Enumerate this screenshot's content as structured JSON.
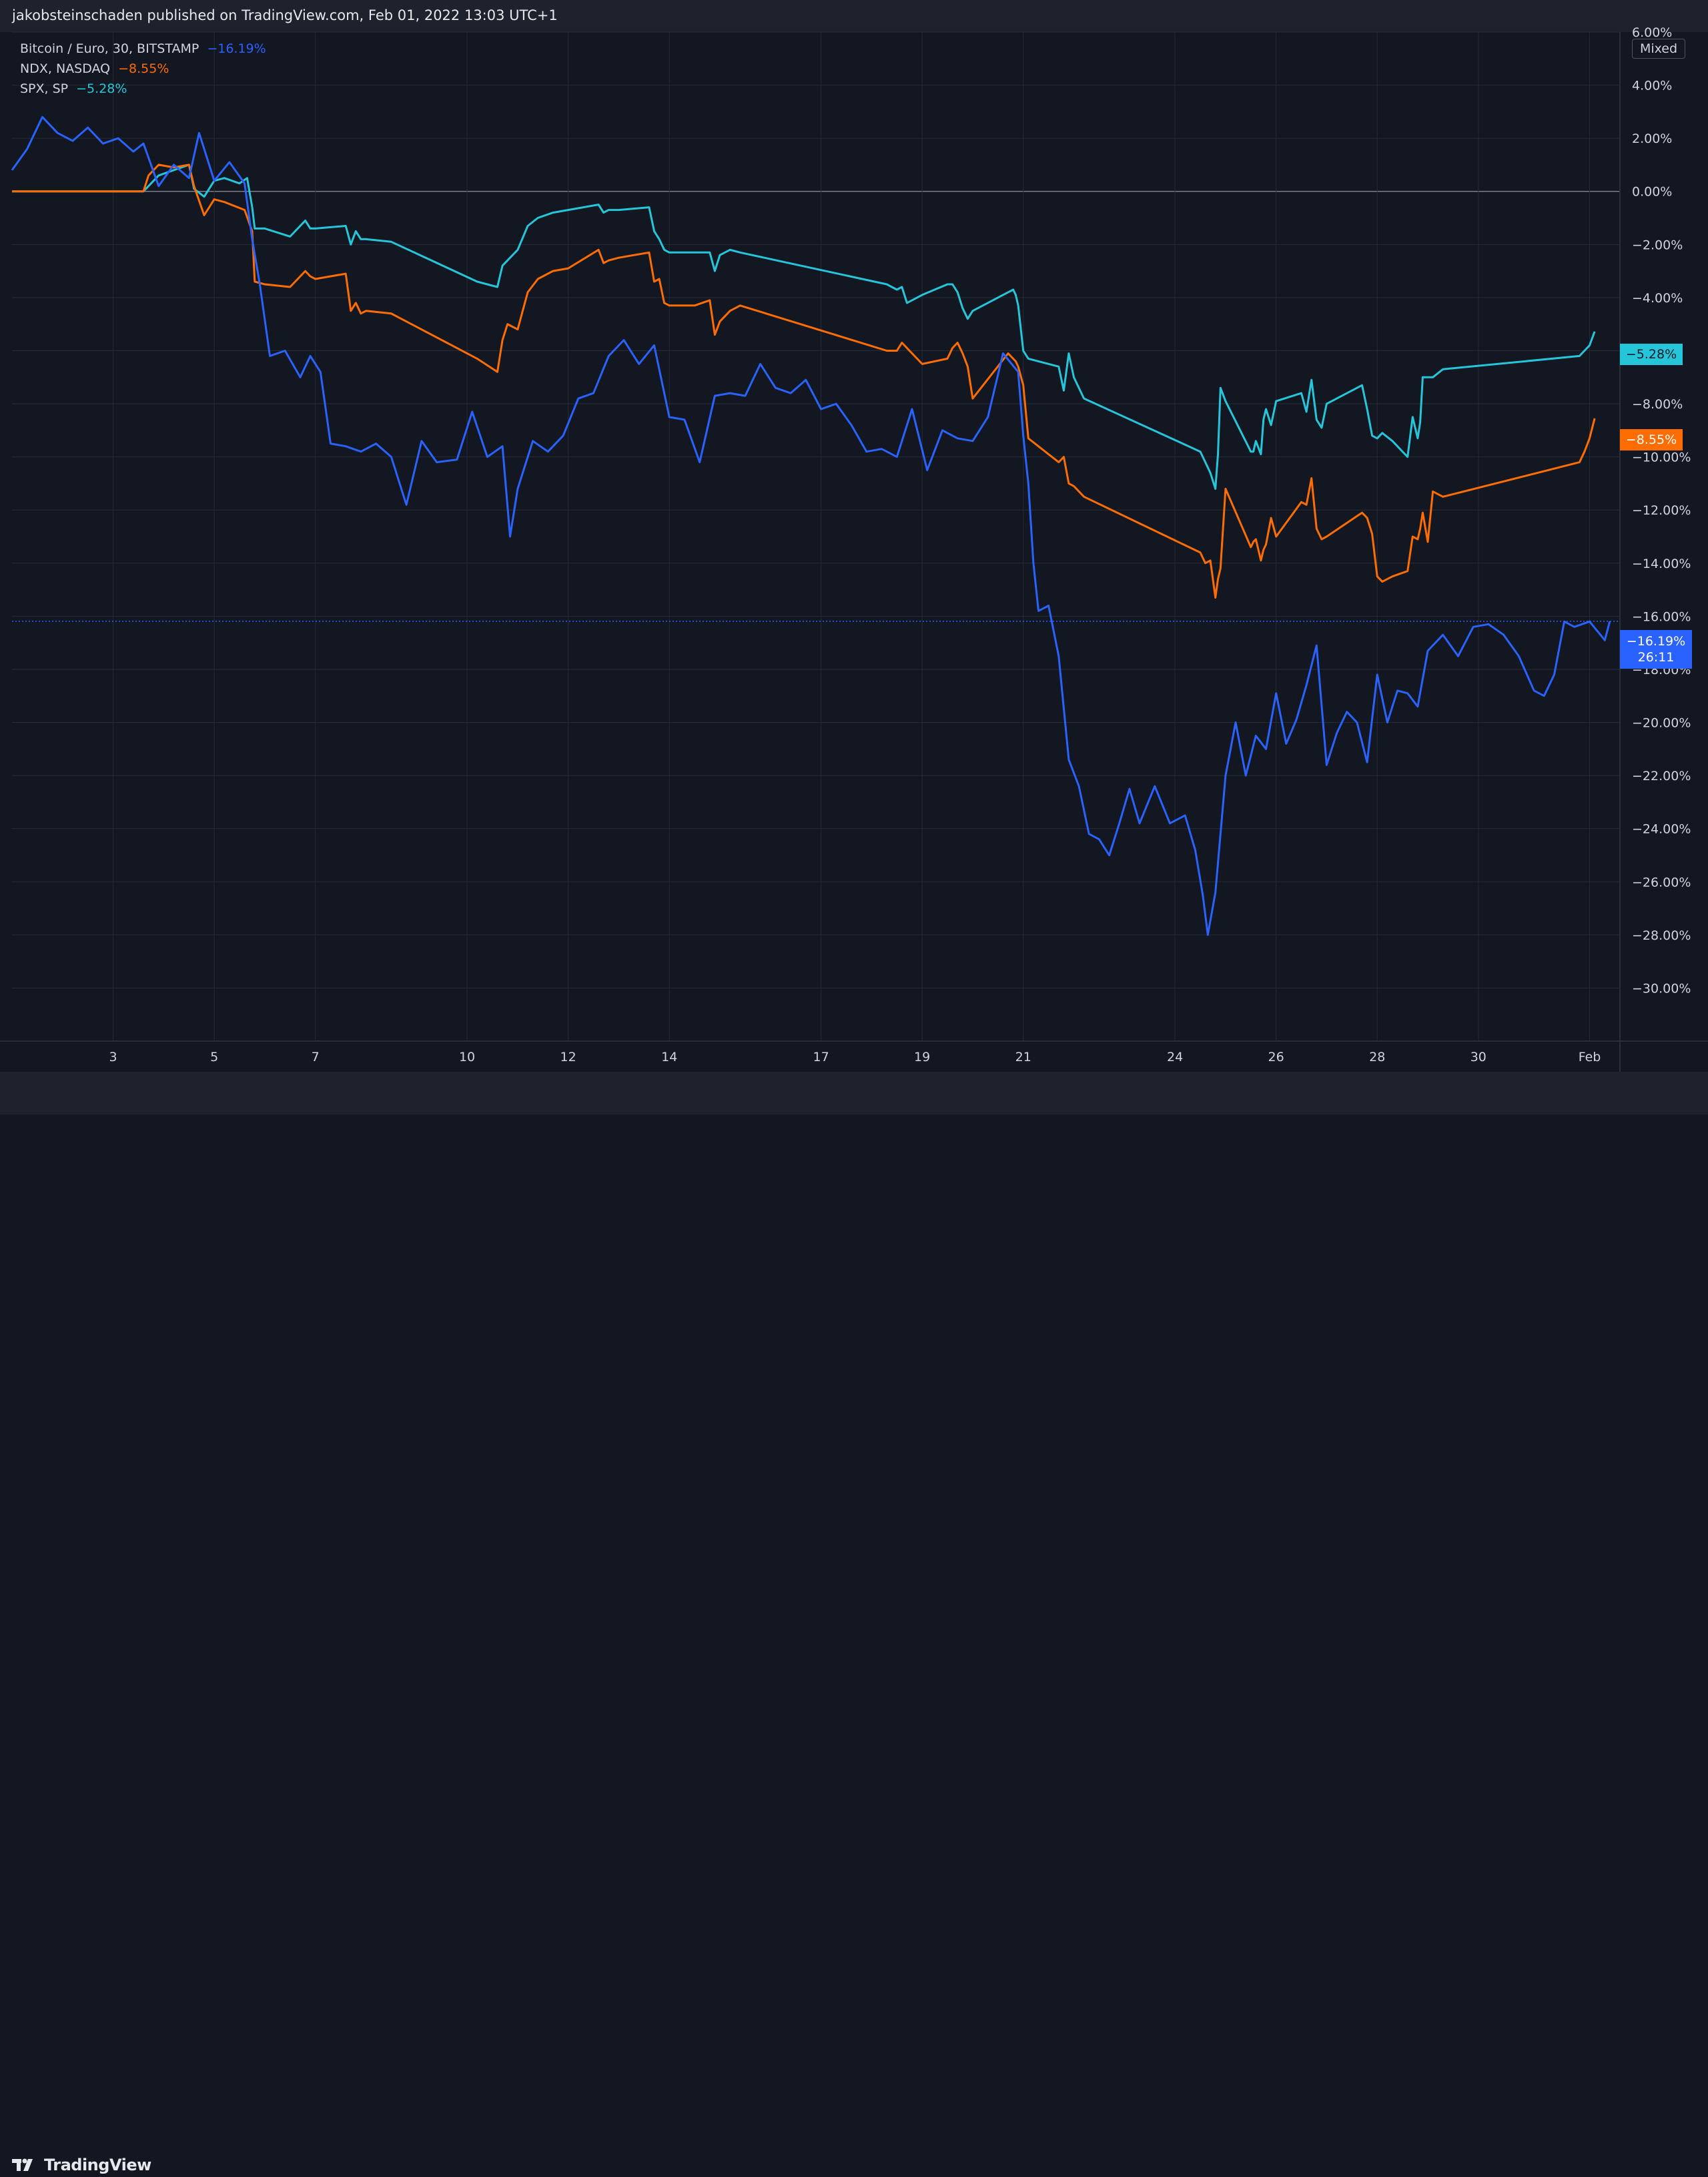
{
  "header": {
    "published_text": "jakobsteinschaden published on TradingView.com, Feb 01, 2022 13:03 UTC+1"
  },
  "footer": {
    "brand": "TradingView"
  },
  "scale_mode_button": "Mixed",
  "legend": [
    {
      "name": "Bitcoin / Euro, 30, BITSTAMP",
      "value": "−16.19%",
      "color": "#2962ff"
    },
    {
      "name": "NDX, NASDAQ",
      "value": "−8.55%",
      "color": "#ff6d00"
    },
    {
      "name": "SPX, SP",
      "value": "−5.28%",
      "color": "#26c6da"
    }
  ],
  "price_tags": {
    "spx": "−5.28%",
    "ndx": "−8.55%",
    "btc": "−16.19%",
    "btc_countdown": "26:11"
  },
  "colors": {
    "background": "#131722",
    "grid": "#262b38",
    "btc": "#2962ff",
    "ndx": "#ff6d00",
    "spx": "#26c6da",
    "zero_line": "#7a7e89"
  },
  "chart_data": {
    "type": "line",
    "yunit": "%",
    "ylim": [
      -32.0,
      6.0
    ],
    "yticks": [
      6,
      4,
      2,
      0,
      -2,
      -4,
      -6,
      -8,
      -10,
      -12,
      -14,
      -16,
      -18,
      -20,
      -22,
      -24,
      -26,
      -28,
      -30
    ],
    "ytick_labels": [
      "6.00%",
      "4.00%",
      "2.00%",
      "0.00%",
      "−2.00%",
      "−4.00%",
      "−6.00%",
      "−8.00%",
      "−10.00%",
      "−12.00%",
      "−14.00%",
      "−16.00%",
      "−18.00%",
      "−20.00%",
      "−22.00%",
      "−24.00%",
      "−26.00%",
      "−28.00%",
      "−30.00%"
    ],
    "xlim": [
      1.0,
      32.8
    ],
    "xtick_positions": [
      3,
      5,
      7,
      10,
      12,
      14,
      17,
      19,
      21,
      24,
      26,
      28,
      30,
      32.2
    ],
    "xtick_labels": [
      "3",
      "5",
      "7",
      "10",
      "12",
      "14",
      "17",
      "19",
      "21",
      "24",
      "26",
      "28",
      "30",
      "Feb"
    ],
    "grid": true,
    "series": [
      {
        "name": "Bitcoin / Euro, 30, BITSTAMP",
        "color": "#2962ff",
        "x": [
          1.0,
          1.3,
          1.6,
          1.9,
          2.2,
          2.5,
          2.8,
          3.1,
          3.4,
          3.6,
          3.9,
          4.2,
          4.5,
          4.7,
          5.0,
          5.3,
          5.6,
          5.75,
          5.9,
          6.1,
          6.4,
          6.7,
          6.9,
          7.1,
          7.3,
          7.6,
          7.9,
          8.2,
          8.5,
          8.8,
          9.1,
          9.4,
          9.8,
          10.1,
          10.4,
          10.7,
          10.85,
          11.0,
          11.3,
          11.6,
          11.9,
          12.2,
          12.5,
          12.8,
          13.1,
          13.4,
          13.7,
          14.0,
          14.3,
          14.6,
          14.9,
          15.2,
          15.5,
          15.8,
          16.1,
          16.4,
          16.7,
          17.0,
          17.3,
          17.6,
          17.9,
          18.2,
          18.5,
          18.8,
          19.1,
          19.4,
          19.7,
          20.0,
          20.3,
          20.6,
          20.9,
          21.0,
          21.1,
          21.2,
          21.3,
          21.5,
          21.7,
          21.9,
          22.1,
          22.3,
          22.5,
          22.7,
          22.9,
          23.1,
          23.3,
          23.6,
          23.9,
          24.2,
          24.4,
          24.55,
          24.65,
          24.8,
          25.0,
          25.2,
          25.4,
          25.6,
          25.8,
          26.0,
          26.2,
          26.4,
          26.6,
          26.8,
          27.0,
          27.2,
          27.4,
          27.6,
          27.8,
          28.0,
          28.2,
          28.4,
          28.6,
          28.8,
          29.0,
          29.3,
          29.6,
          29.9,
          30.2,
          30.5,
          30.8,
          31.1,
          31.3,
          31.5,
          31.7,
          31.9,
          32.2,
          32.5,
          32.6
        ],
        "y": [
          0.8,
          1.6,
          2.8,
          2.2,
          1.9,
          2.4,
          1.8,
          2.0,
          1.5,
          1.8,
          0.2,
          1.0,
          0.5,
          2.2,
          0.4,
          1.1,
          0.3,
          -1.8,
          -3.5,
          -6.2,
          -6.0,
          -7.0,
          -6.2,
          -6.8,
          -9.5,
          -9.6,
          -9.8,
          -9.5,
          -10.0,
          -11.8,
          -9.4,
          -10.2,
          -10.1,
          -8.3,
          -10.0,
          -9.6,
          -13.0,
          -11.2,
          -9.4,
          -9.8,
          -9.2,
          -7.8,
          -7.6,
          -6.2,
          -5.6,
          -6.5,
          -5.8,
          -8.5,
          -8.6,
          -10.2,
          -7.7,
          -7.6,
          -7.7,
          -6.5,
          -7.4,
          -7.6,
          -7.1,
          -8.2,
          -8.0,
          -8.8,
          -9.8,
          -9.7,
          -10.0,
          -8.2,
          -10.5,
          -9.0,
          -9.3,
          -9.4,
          -8.5,
          -6.1,
          -6.8,
          -9.2,
          -11.0,
          -14.0,
          -15.8,
          -15.6,
          -17.5,
          -21.4,
          -22.4,
          -24.2,
          -24.4,
          -25.0,
          -23.8,
          -22.5,
          -23.8,
          -22.4,
          -23.8,
          -23.5,
          -24.8,
          -26.5,
          -28.0,
          -26.4,
          -22.0,
          -20.0,
          -22.0,
          -20.5,
          -21.0,
          -18.9,
          -20.8,
          -19.9,
          -18.6,
          -17.1,
          -21.6,
          -20.4,
          -19.6,
          -20.0,
          -21.5,
          -18.2,
          -20.0,
          -18.8,
          -18.9,
          -19.4,
          -17.3,
          -16.7,
          -17.5,
          -16.4,
          -16.3,
          -16.7,
          -17.5,
          -18.8,
          -19.0,
          -18.2,
          -16.2,
          -16.4,
          -16.2,
          -16.9,
          -16.19
        ]
      },
      {
        "name": "NDX, NASDAQ",
        "color": "#ff6d00",
        "x": [
          1.0,
          3.6,
          3.7,
          3.9,
          4.2,
          4.5,
          4.6,
          4.8,
          5.0,
          5.2,
          5.6,
          5.75,
          5.8,
          6.0,
          6.5,
          6.8,
          6.9,
          7.0,
          7.6,
          7.7,
          7.8,
          7.9,
          8.0,
          8.5,
          10.2,
          10.6,
          10.7,
          10.8,
          11.0,
          11.2,
          11.4,
          11.7,
          12.0,
          12.6,
          12.7,
          12.8,
          13.0,
          13.6,
          13.7,
          13.8,
          13.9,
          14.0,
          14.5,
          14.8,
          14.9,
          15.0,
          15.2,
          15.4,
          18.3,
          18.5,
          18.6,
          18.7,
          19.0,
          19.5,
          19.6,
          19.7,
          19.8,
          19.9,
          20.0,
          20.7,
          20.8,
          20.85,
          20.9,
          21.0,
          21.1,
          21.7,
          21.8,
          21.9,
          22.0,
          22.2,
          24.5,
          24.6,
          24.7,
          24.8,
          24.85,
          24.9,
          25.0,
          25.5,
          25.55,
          25.6,
          25.7,
          25.75,
          25.8,
          25.9,
          26.0,
          26.5,
          26.6,
          26.7,
          26.8,
          26.9,
          27.0,
          27.7,
          27.8,
          27.9,
          28.0,
          28.1,
          28.3,
          28.6,
          28.7,
          28.8,
          28.85,
          28.9,
          29.0,
          29.1,
          29.3,
          32.0,
          32.1,
          32.2,
          32.3
        ],
        "y": [
          0.0,
          0.0,
          0.6,
          1.0,
          0.9,
          1.0,
          0.2,
          -0.9,
          -0.3,
          -0.4,
          -0.7,
          -1.5,
          -3.4,
          -3.5,
          -3.6,
          -3.0,
          -3.2,
          -3.3,
          -3.1,
          -4.5,
          -4.2,
          -4.6,
          -4.5,
          -4.6,
          -6.3,
          -6.8,
          -5.6,
          -5.0,
          -5.2,
          -3.8,
          -3.3,
          -3.0,
          -2.9,
          -2.2,
          -2.7,
          -2.6,
          -2.5,
          -2.3,
          -3.4,
          -3.3,
          -4.2,
          -4.3,
          -4.3,
          -4.1,
          -5.4,
          -4.9,
          -4.5,
          -4.3,
          -6.0,
          -6.0,
          -5.7,
          -5.9,
          -6.5,
          -6.3,
          -5.9,
          -5.7,
          -6.1,
          -6.6,
          -7.8,
          -6.1,
          -6.3,
          -6.4,
          -6.6,
          -7.3,
          -9.3,
          -10.2,
          -10.0,
          -11.0,
          -11.1,
          -11.5,
          -13.6,
          -14.0,
          -13.9,
          -15.3,
          -14.6,
          -14.2,
          -11.2,
          -13.4,
          -13.2,
          -13.1,
          -13.9,
          -13.5,
          -13.3,
          -12.3,
          -13.0,
          -11.7,
          -11.8,
          -10.8,
          -12.7,
          -13.1,
          -13.0,
          -12.1,
          -12.3,
          -12.9,
          -14.5,
          -14.7,
          -14.5,
          -14.3,
          -13.0,
          -13.1,
          -12.7,
          -12.1,
          -13.2,
          -11.3,
          -11.5,
          -10.2,
          -9.8,
          -9.3,
          -8.55
        ]
      },
      {
        "name": "SPX, SP",
        "color": "#26c6da",
        "x": [
          1.0,
          3.6,
          3.7,
          3.9,
          4.2,
          4.5,
          4.6,
          4.8,
          5.0,
          5.2,
          5.5,
          5.65,
          5.75,
          5.8,
          6.0,
          6.5,
          6.8,
          6.9,
          7.0,
          7.6,
          7.7,
          7.8,
          7.9,
          8.0,
          8.5,
          10.2,
          10.6,
          10.7,
          10.8,
          11.0,
          11.2,
          11.4,
          11.7,
          12.0,
          12.6,
          12.7,
          12.8,
          13.0,
          13.6,
          13.7,
          13.8,
          13.9,
          14.0,
          14.5,
          14.8,
          14.9,
          15.0,
          15.2,
          15.4,
          18.3,
          18.5,
          18.6,
          18.7,
          19.0,
          19.5,
          19.6,
          19.7,
          19.8,
          19.9,
          20.0,
          20.7,
          20.8,
          20.85,
          20.9,
          21.0,
          21.1,
          21.7,
          21.8,
          21.9,
          22.0,
          22.2,
          24.5,
          24.6,
          24.7,
          24.8,
          24.85,
          24.9,
          25.0,
          25.5,
          25.55,
          25.6,
          25.7,
          25.75,
          25.8,
          25.9,
          26.0,
          26.5,
          26.6,
          26.7,
          26.8,
          26.9,
          27.0,
          27.7,
          27.8,
          27.9,
          28.0,
          28.1,
          28.3,
          28.6,
          28.7,
          28.8,
          28.85,
          28.9,
          29.0,
          29.1,
          29.3,
          32.0,
          32.1,
          32.2,
          32.3
        ],
        "y": [
          0.0,
          0.0,
          0.2,
          0.6,
          0.8,
          1.0,
          0.1,
          -0.2,
          0.4,
          0.5,
          0.3,
          0.5,
          -0.6,
          -1.4,
          -1.4,
          -1.7,
          -1.1,
          -1.4,
          -1.4,
          -1.3,
          -2.0,
          -1.5,
          -1.8,
          -1.8,
          -1.9,
          -3.4,
          -3.6,
          -2.8,
          -2.6,
          -2.2,
          -1.3,
          -1.0,
          -0.8,
          -0.7,
          -0.5,
          -0.8,
          -0.7,
          -0.7,
          -0.6,
          -1.5,
          -1.8,
          -2.2,
          -2.3,
          -2.3,
          -2.3,
          -3.0,
          -2.4,
          -2.2,
          -2.3,
          -3.5,
          -3.7,
          -3.6,
          -4.2,
          -3.9,
          -3.5,
          -3.5,
          -3.8,
          -4.4,
          -4.8,
          -4.5,
          -3.8,
          -3.7,
          -3.9,
          -4.3,
          -6.0,
          -6.3,
          -6.6,
          -7.5,
          -6.1,
          -7.0,
          -7.8,
          -9.8,
          -10.2,
          -10.6,
          -11.2,
          -9.9,
          -7.4,
          -7.9,
          -9.8,
          -9.8,
          -9.4,
          -9.9,
          -8.6,
          -8.2,
          -8.8,
          -7.9,
          -7.6,
          -8.3,
          -7.1,
          -8.6,
          -8.9,
          -8.0,
          -7.3,
          -8.2,
          -9.2,
          -9.3,
          -9.1,
          -9.4,
          -10.0,
          -8.5,
          -9.3,
          -8.7,
          -7.0,
          -7.0,
          -7.0,
          -6.7,
          -6.2,
          -6.0,
          -5.8,
          -5.28
        ]
      }
    ]
  }
}
